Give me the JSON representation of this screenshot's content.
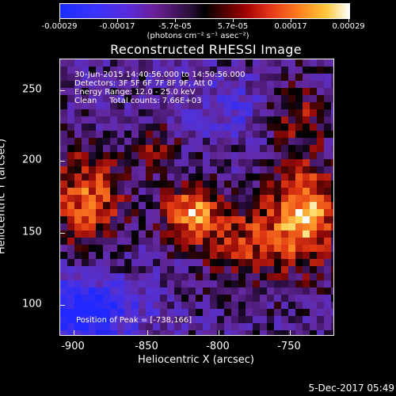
{
  "colorbar": {
    "ticks": [
      "-0.00029",
      "-0.00017",
      "-5.7e-05",
      "5.7e-05",
      "0.00017",
      "0.00029"
    ],
    "units": "(photons cm⁻² s⁻¹ asec⁻²)"
  },
  "title": "Reconstructed RHESSI Image",
  "overlay": {
    "time": "30-Jun-2015 14:40:56.000 to 14:50:56.000",
    "detectors": "Detectors: 3F 5F 6F 7F 8F 9F, Att 0",
    "energy": "Energy Range: 12.0 - 25.0 keV",
    "clean": "Clean     Total counts: 7.66E+03",
    "peak": "Position of Peak = [-738,166]"
  },
  "axes": {
    "x_label": "Heliocentric X (arcsec)",
    "y_label": "Heliocentric Y (arcsec)",
    "x_ticks": [
      "-900",
      "-850",
      "-800",
      "-750"
    ],
    "y_ticks": [
      "250",
      "200",
      "150",
      "100"
    ]
  },
  "timestamp": "5-Dec-2017 05:49"
}
